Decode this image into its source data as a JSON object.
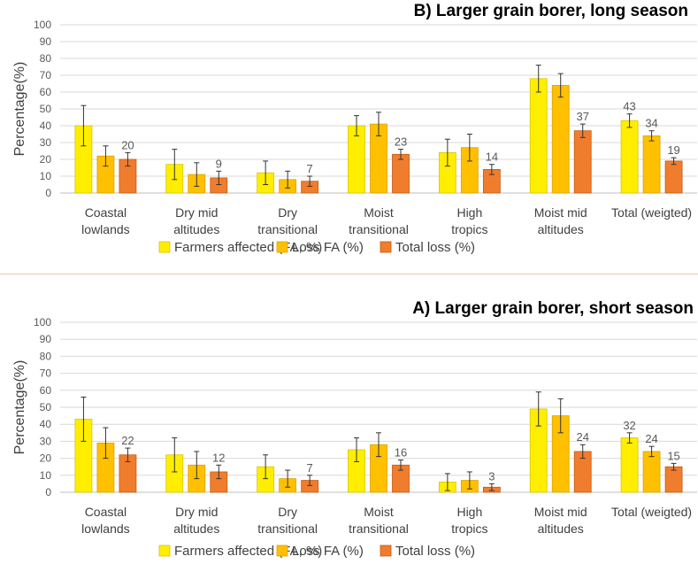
{
  "chart_data": [
    {
      "type": "bar",
      "title": "B) Larger grain borer, long season",
      "ylabel": "Percentage(%)",
      "xlabel": "",
      "ylim": [
        0,
        100
      ],
      "yticks": [
        0,
        10,
        20,
        30,
        40,
        50,
        60,
        70,
        80,
        90,
        100
      ],
      "grid": true,
      "legend_position": "bottom",
      "categories": [
        [
          "Coastal",
          "lowlands"
        ],
        [
          "Dry mid",
          "altitudes"
        ],
        [
          "Dry",
          "transitional"
        ],
        [
          "Moist",
          "transitional"
        ],
        [
          "High",
          "tropics"
        ],
        [
          "Moist mid",
          "altitudes"
        ],
        [
          "Total (weigted)"
        ]
      ],
      "series": [
        {
          "name": "Farmers affected (FA, %)",
          "color": "#ffee00",
          "stroke": "#d8c400",
          "values": [
            40,
            17,
            12,
            40,
            24,
            68,
            43
          ],
          "err": [
            12,
            9,
            7,
            6,
            8,
            8,
            4
          ],
          "labels": [
            "",
            "",
            "",
            "",
            "",
            "",
            "43"
          ]
        },
        {
          "name": "Loss FA (%)",
          "color": "#ffc000",
          "stroke": "#d9a300",
          "values": [
            22,
            11,
            8,
            41,
            27,
            64,
            34
          ],
          "err": [
            6,
            7,
            5,
            7,
            8,
            7,
            3
          ],
          "labels": [
            "",
            "",
            "",
            "",
            "",
            "",
            "34"
          ]
        },
        {
          "name": "Total loss (%)",
          "color": "#f07d2d",
          "stroke": "#c55a11",
          "values": [
            20,
            9,
            7,
            23,
            14,
            37,
            19
          ],
          "err": [
            4,
            4,
            3,
            3,
            3,
            4,
            2
          ],
          "labels": [
            "20",
            "9",
            "7",
            "23",
            "14",
            "37",
            "19"
          ]
        }
      ]
    },
    {
      "type": "bar",
      "title": "A) Larger grain borer, short season",
      "ylabel": "Percentage(%)",
      "xlabel": "",
      "ylim": [
        0,
        100
      ],
      "yticks": [
        0,
        10,
        20,
        30,
        40,
        50,
        60,
        70,
        80,
        90,
        100
      ],
      "grid": true,
      "legend_position": "bottom",
      "categories": [
        [
          "Coastal",
          "lowlands"
        ],
        [
          "Dry mid",
          "altitudes"
        ],
        [
          "Dry",
          "transitional"
        ],
        [
          "Moist",
          "transitional"
        ],
        [
          "High",
          "tropics"
        ],
        [
          "Moist mid",
          "altitudes"
        ],
        [
          "Total (weigted)"
        ]
      ],
      "series": [
        {
          "name": "Farmers affected (FA, %)",
          "color": "#ffee00",
          "stroke": "#d8c400",
          "values": [
            43,
            22,
            15,
            25,
            6,
            49,
            32
          ],
          "err": [
            13,
            10,
            7,
            7,
            5,
            10,
            3
          ],
          "labels": [
            "",
            "",
            "",
            "",
            "",
            "",
            "32"
          ]
        },
        {
          "name": "Loss FA (%)",
          "color": "#ffc000",
          "stroke": "#d9a300",
          "values": [
            29,
            16,
            8,
            28,
            7,
            45,
            24
          ],
          "err": [
            9,
            8,
            5,
            7,
            5,
            10,
            3
          ],
          "labels": [
            "",
            "",
            "",
            "",
            "",
            "",
            "24"
          ]
        },
        {
          "name": "Total loss (%)",
          "color": "#f07d2d",
          "stroke": "#c55a11",
          "values": [
            22,
            12,
            7,
            16,
            3,
            24,
            15
          ],
          "err": [
            4,
            4,
            3,
            3,
            2,
            4,
            2
          ],
          "labels": [
            "22",
            "12",
            "7",
            "16",
            "3",
            "24",
            "15"
          ]
        }
      ]
    }
  ]
}
